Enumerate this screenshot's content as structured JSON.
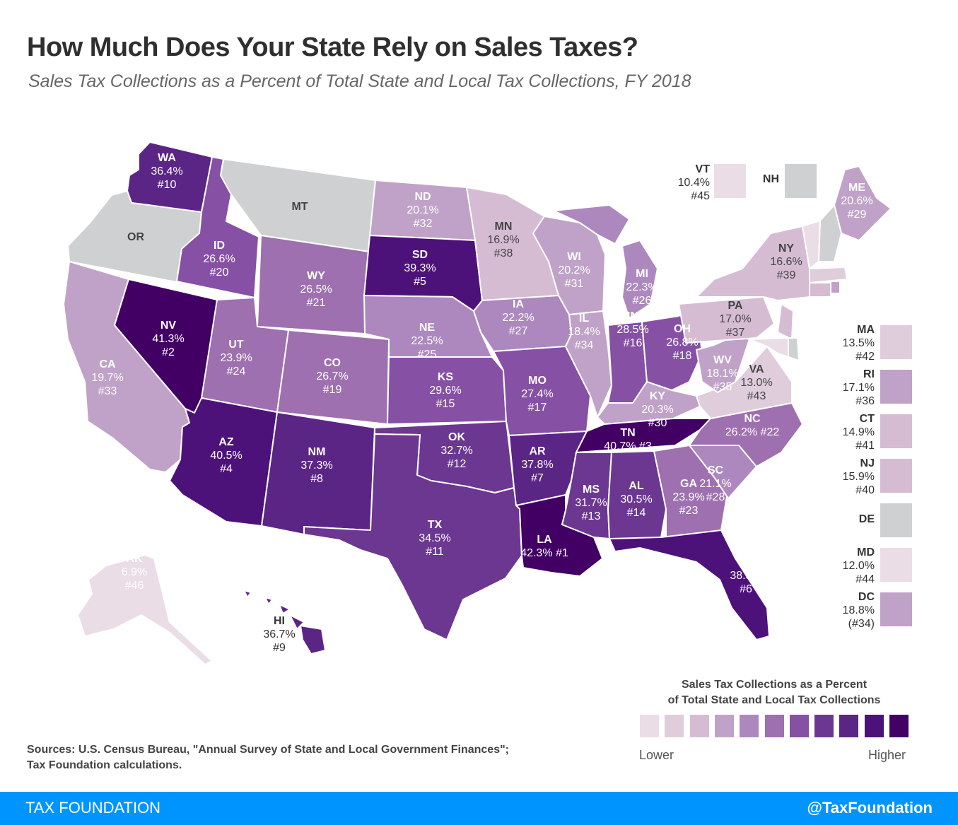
{
  "title": "How Much Does Your State Rely on Sales Taxes?",
  "subtitle": "Sales Tax Collections as a Percent of Total State and Local Tax Collections, FY 2018",
  "colors": {
    "no_tax": "#cfd0d2",
    "scale": [
      "#eadde6",
      "#e0cddb",
      "#d5bcd3",
      "#c0a2c8",
      "#ad88bf",
      "#9e70b0",
      "#8650a5",
      "#6b3790",
      "#5b2585",
      "#4d1279",
      "#420064"
    ]
  },
  "states": [
    {
      "abbr": "WA",
      "value": "36.4%",
      "rank": "#10",
      "level": 8
    },
    {
      "abbr": "OR",
      "value": "",
      "rank": "",
      "level": -1
    },
    {
      "abbr": "CA",
      "value": "19.7%",
      "rank": "#33",
      "level": 3
    },
    {
      "abbr": "NV",
      "value": "41.3%",
      "rank": "#2",
      "level": 10
    },
    {
      "abbr": "ID",
      "value": "26.6%",
      "rank": "#20",
      "level": 6
    },
    {
      "abbr": "MT",
      "value": "",
      "rank": "",
      "level": -1
    },
    {
      "abbr": "WY",
      "value": "26.5%",
      "rank": "#21",
      "level": 5
    },
    {
      "abbr": "UT",
      "value": "23.9%",
      "rank": "#24",
      "level": 5
    },
    {
      "abbr": "AZ",
      "value": "40.5%",
      "rank": "#4",
      "level": 9
    },
    {
      "abbr": "CO",
      "value": "26.7%",
      "rank": "#19",
      "level": 5
    },
    {
      "abbr": "NM",
      "value": "37.3%",
      "rank": "#8",
      "level": 8
    },
    {
      "abbr": "ND",
      "value": "20.1%",
      "rank": "#32",
      "level": 3
    },
    {
      "abbr": "SD",
      "value": "39.3%",
      "rank": "#5",
      "level": 9
    },
    {
      "abbr": "NE",
      "value": "22.5%",
      "rank": "#25",
      "level": 4
    },
    {
      "abbr": "KS",
      "value": "29.6%",
      "rank": "#15",
      "level": 6
    },
    {
      "abbr": "OK",
      "value": "32.7%",
      "rank": "#12",
      "level": 7
    },
    {
      "abbr": "TX",
      "value": "34.5%",
      "rank": "#11",
      "level": 7
    },
    {
      "abbr": "MN",
      "value": "16.9%",
      "rank": "#38",
      "level": 2
    },
    {
      "abbr": "IA",
      "value": "22.2%",
      "rank": "#27",
      "level": 4
    },
    {
      "abbr": "MO",
      "value": "27.4%",
      "rank": "#17",
      "level": 6
    },
    {
      "abbr": "AR",
      "value": "37.8%",
      "rank": "#7",
      "level": 8
    },
    {
      "abbr": "LA",
      "value": "42.3%",
      "rank": "#1",
      "level": 10
    },
    {
      "abbr": "WI",
      "value": "20.2%",
      "rank": "#31",
      "level": 3
    },
    {
      "abbr": "IL",
      "value": "18.4%",
      "rank": "#34",
      "level": 3
    },
    {
      "abbr": "MI",
      "value": "22.3%",
      "rank": "#26",
      "level": 4
    },
    {
      "abbr": "IN",
      "value": "28.5%",
      "rank": "#16",
      "level": 6
    },
    {
      "abbr": "OH",
      "value": "26.8%",
      "rank": "#18",
      "level": 6
    },
    {
      "abbr": "KY",
      "value": "20.3%",
      "rank": "#30",
      "level": 3
    },
    {
      "abbr": "TN",
      "value": "40.7%",
      "rank": "#3",
      "level": 10
    },
    {
      "abbr": "MS",
      "value": "31.7%",
      "rank": "#13",
      "level": 7
    },
    {
      "abbr": "AL",
      "value": "30.5%",
      "rank": "#14",
      "level": 7
    },
    {
      "abbr": "GA",
      "value": "23.9%",
      "rank": "#23",
      "level": 5
    },
    {
      "abbr": "FL",
      "value": "38.3%",
      "rank": "#6",
      "level": 9
    },
    {
      "abbr": "SC",
      "value": "21.1%",
      "rank": "#28",
      "level": 4
    },
    {
      "abbr": "NC",
      "value": "26.2%",
      "rank": "#22",
      "level": 5
    },
    {
      "abbr": "VA",
      "value": "13.0%",
      "rank": "#43",
      "level": 1
    },
    {
      "abbr": "WV",
      "value": "18.1%",
      "rank": "#35",
      "level": 3
    },
    {
      "abbr": "PA",
      "value": "17.0%",
      "rank": "#37",
      "level": 2
    },
    {
      "abbr": "NY",
      "value": "16.6%",
      "rank": "#39",
      "level": 2
    },
    {
      "abbr": "ME",
      "value": "20.6%",
      "rank": "#29",
      "level": 3
    },
    {
      "abbr": "AK",
      "value": "6.9%",
      "rank": "#46",
      "level": 0
    },
    {
      "abbr": "HI",
      "value": "36.7%",
      "rank": "#9",
      "level": 8
    }
  ],
  "small_states_top": [
    {
      "abbr": "VT",
      "value": "10.4%",
      "rank": "#45",
      "level": 0
    },
    {
      "abbr": "NH",
      "value": "",
      "rank": "",
      "level": -1
    }
  ],
  "small_states_side": [
    {
      "abbr": "MA",
      "value": "13.5%",
      "rank": "#42",
      "level": 1
    },
    {
      "abbr": "RI",
      "value": "17.1%",
      "rank": "#36",
      "level": 3
    },
    {
      "abbr": "CT",
      "value": "14.9%",
      "rank": "#41",
      "level": 2
    },
    {
      "abbr": "NJ",
      "value": "15.9%",
      "rank": "#40",
      "level": 2
    },
    {
      "abbr": "DE",
      "value": "",
      "rank": "",
      "level": -1
    },
    {
      "abbr": "MD",
      "value": "12.0%",
      "rank": "#44",
      "level": 0
    },
    {
      "abbr": "DC",
      "value": "18.8%",
      "rank": "(#34)",
      "level": 3
    }
  ],
  "legend": {
    "title_line1": "Sales Tax Collections as a Percent",
    "title_line2": "of Total State and Local Tax Collections",
    "low_label": "Lower",
    "high_label": "Higher"
  },
  "sources": {
    "line1": "Sources: U.S. Census Bureau, \"Annual Survey of State and Local Government Finances\";",
    "line2": "Tax Foundation calculations."
  },
  "footer": {
    "left": "TAX FOUNDATION",
    "right": "@TaxFoundation"
  }
}
